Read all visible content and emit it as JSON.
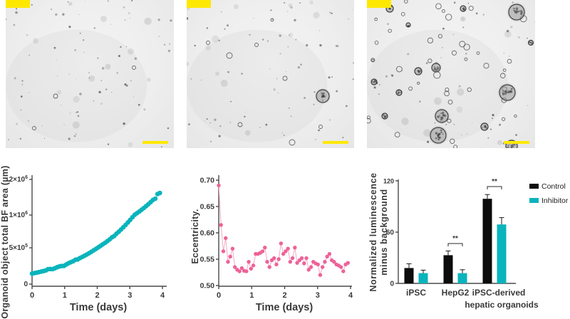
{
  "colors": {
    "accent_teal": "#0ab4bc",
    "accent_pink": "#ee6298",
    "pink_line": "#f5a8c5",
    "highlight_yellow": "#ffe800",
    "bar_black": "#0c0c0c",
    "axis": "#4a4a4a",
    "text": "#3a3a3a"
  },
  "panels": [
    {
      "name": "brightfield-micrograph-1",
      "corner_label_text": "",
      "has_scale_bar": true
    },
    {
      "name": "brightfield-micrograph-2",
      "corner_label_text": "",
      "has_scale_bar": true
    },
    {
      "name": "brightfield-micrograph-3",
      "corner_label_text": "",
      "has_scale_bar": true
    }
  ],
  "chart_data": [
    {
      "type": "scatter",
      "title": "",
      "xlabel": "Time (days)",
      "ylabel": "Organoid object total BF area (µm)",
      "x_ticks": [
        0,
        1,
        2,
        3,
        4
      ],
      "xlim": [
        0,
        4
      ],
      "grid": false,
      "y_ticks": [
        {
          "base": "0",
          "exp": "",
          "value": 0
        },
        {
          "base": "5×10",
          "exp": "5",
          "value": 500000
        },
        {
          "base": "1×10",
          "exp": "6",
          "value": 1000000
        },
        {
          "base": "2×10",
          "exp": "6",
          "value": 2000000
        }
      ],
      "series": [
        {
          "name": "organoid-area",
          "color": "#0ab4bc",
          "points": [
            [
              0,
              145000
            ],
            [
              0.07,
              151000
            ],
            [
              0.14,
              158000
            ],
            [
              0.21,
              165000
            ],
            [
              0.28,
              172000
            ],
            [
              0.35,
              180000
            ],
            [
              0.42,
              188000
            ],
            [
              0.49,
              205000
            ],
            [
              0.56,
              208000
            ],
            [
              0.63,
              207000
            ],
            [
              0.7,
              219000
            ],
            [
              0.77,
              233000
            ],
            [
              0.84,
              243000
            ],
            [
              0.91,
              250000
            ],
            [
              0.98,
              251000
            ],
            [
              1.05,
              270000
            ],
            [
              1.12,
              289000
            ],
            [
              1.19,
              302000
            ],
            [
              1.26,
              315000
            ],
            [
              1.33,
              335000
            ],
            [
              1.4,
              340000
            ],
            [
              1.47,
              359000
            ],
            [
              1.54,
              374000
            ],
            [
              1.61,
              391000
            ],
            [
              1.68,
              408000
            ],
            [
              1.75,
              426000
            ],
            [
              1.82,
              445000
            ],
            [
              1.89,
              465000
            ],
            [
              1.96,
              485000
            ],
            [
              2.03,
              506000
            ],
            [
              2.1,
              529000
            ],
            [
              2.17,
              552000
            ],
            [
              2.24,
              576000
            ],
            [
              2.31,
              602000
            ],
            [
              2.38,
              628000
            ],
            [
              2.45,
              660000
            ],
            [
              2.52,
              680000
            ],
            [
              2.59,
              715000
            ],
            [
              2.66,
              746000
            ],
            [
              2.73,
              779000
            ],
            [
              2.8,
              814000
            ],
            [
              2.87,
              849000
            ],
            [
              2.94,
              887000
            ],
            [
              3.01,
              926000
            ],
            [
              3.08,
              967000
            ],
            [
              3.15,
              1009000
            ],
            [
              3.22,
              1054000
            ],
            [
              3.29,
              1100000
            ],
            [
              3.36,
              1149000
            ],
            [
              3.43,
              1199000
            ],
            [
              3.5,
              1252000
            ],
            [
              3.57,
              1307000
            ],
            [
              3.64,
              1365000
            ],
            [
              3.71,
              1425000
            ],
            [
              3.78,
              1460000
            ],
            [
              3.85,
              1590000
            ],
            [
              3.92,
              1620000
            ]
          ]
        }
      ]
    },
    {
      "type": "scatter",
      "title": "",
      "xlabel": "Time (days)",
      "ylabel": "Eccentricity.",
      "x_ticks": [
        0,
        1,
        2,
        3,
        4
      ],
      "xlim": [
        0,
        4
      ],
      "ylim": [
        0.5,
        0.7
      ],
      "grid": false,
      "y_ticks": [
        "0.50",
        "0.55",
        "0.60",
        "0.65",
        "0.70"
      ],
      "connect_line": true,
      "series": [
        {
          "name": "eccentricity",
          "color": "#ee6298",
          "line_color": "#f5a8c5",
          "points": [
            [
              0,
              0.69
            ],
            [
              0.07,
              0.615
            ],
            [
              0.14,
              0.565
            ],
            [
              0.21,
              0.59
            ],
            [
              0.28,
              0.545
            ],
            [
              0.35,
              0.555
            ],
            [
              0.42,
              0.57
            ],
            [
              0.49,
              0.535
            ],
            [
              0.56,
              0.53
            ],
            [
              0.63,
              0.527
            ],
            [
              0.7,
              0.533
            ],
            [
              0.77,
              0.528
            ],
            [
              0.84,
              0.527
            ],
            [
              0.91,
              0.545
            ],
            [
              0.98,
              0.532
            ],
            [
              1.05,
              0.538
            ],
            [
              1.12,
              0.56
            ],
            [
              1.19,
              0.56
            ],
            [
              1.26,
              0.562
            ],
            [
              1.33,
              0.565
            ],
            [
              1.4,
              0.572
            ],
            [
              1.47,
              0.545
            ],
            [
              1.54,
              0.535
            ],
            [
              1.61,
              0.548
            ],
            [
              1.68,
              0.552
            ],
            [
              1.75,
              0.54
            ],
            [
              1.82,
              0.55
            ],
            [
              1.89,
              0.58
            ],
            [
              1.96,
              0.56
            ],
            [
              2.03,
              0.565
            ],
            [
              2.1,
              0.57
            ],
            [
              2.17,
              0.545
            ],
            [
              2.24,
              0.552
            ],
            [
              2.31,
              0.572
            ],
            [
              2.38,
              0.543
            ],
            [
              2.45,
              0.548
            ],
            [
              2.52,
              0.552
            ],
            [
              2.59,
              0.542
            ],
            [
              2.66,
              0.552
            ],
            [
              2.73,
              0.53
            ],
            [
              2.8,
              0.535
            ],
            [
              2.87,
              0.545
            ],
            [
              2.94,
              0.542
            ],
            [
              3.01,
              0.54
            ],
            [
              3.08,
              0.52
            ],
            [
              3.15,
              0.535
            ],
            [
              3.22,
              0.545
            ],
            [
              3.29,
              0.555
            ],
            [
              3.36,
              0.56
            ],
            [
              3.43,
              0.548
            ],
            [
              3.5,
              0.545
            ],
            [
              3.57,
              0.54
            ],
            [
              3.64,
              0.538
            ],
            [
              3.71,
              0.535
            ],
            [
              3.78,
              0.527
            ],
            [
              3.85,
              0.54
            ],
            [
              3.92,
              0.543
            ]
          ]
        }
      ]
    },
    {
      "type": "bar",
      "title": "",
      "xlabel": "",
      "ylabel_lines": [
        "Normalized luminescence",
        "minus background"
      ],
      "ylim": [
        0,
        120
      ],
      "y_ticks": [
        0,
        60,
        120
      ],
      "grid": false,
      "legend_position": "right",
      "categories": [
        {
          "label_lines": [
            "iPSC"
          ]
        },
        {
          "label_lines": [
            "HepG2"
          ]
        },
        {
          "label_lines": [
            "iPSC-derived",
            "hepatic organoids"
          ]
        }
      ],
      "series": [
        {
          "name": "Control",
          "color": "#0c0c0c",
          "values": [
            18,
            33,
            99
          ],
          "errors": [
            5,
            5,
            5
          ]
        },
        {
          "name": "Inhibitor",
          "color": "#0ab4bc",
          "values": [
            12,
            12,
            69
          ],
          "errors": [
            3.5,
            4,
            8
          ]
        }
      ],
      "significance": [
        {
          "category_index": 1,
          "label": "**"
        },
        {
          "category_index": 2,
          "label": "**"
        }
      ]
    }
  ]
}
